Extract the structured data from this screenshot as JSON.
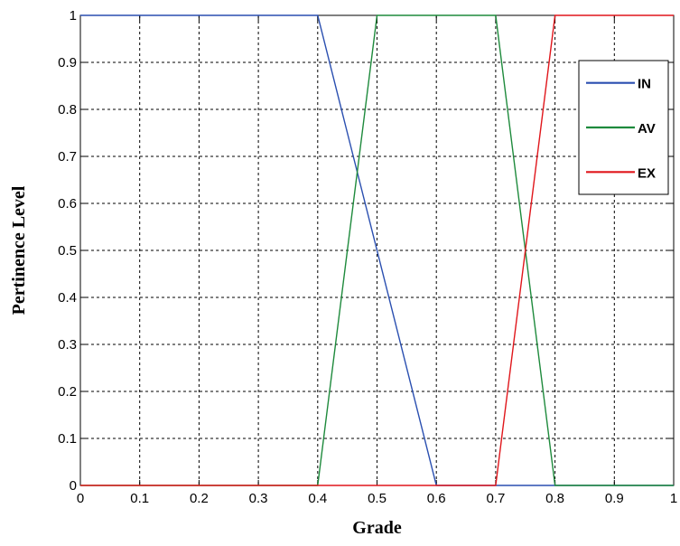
{
  "chart_data": {
    "type": "line",
    "xlabel": "Grade",
    "ylabel": "Pertinence Level",
    "xlim": [
      0,
      1
    ],
    "ylim": [
      0,
      1
    ],
    "x_ticks": [
      0,
      0.1,
      0.2,
      0.3,
      0.4,
      0.5,
      0.6,
      0.7,
      0.8,
      0.9,
      1
    ],
    "y_ticks": [
      0,
      0.1,
      0.2,
      0.3,
      0.4,
      0.5,
      0.6,
      0.7,
      0.8,
      0.9,
      1
    ],
    "x_tick_labels": [
      "0",
      "0.1",
      "0.2",
      "0.3",
      "0.4",
      "0.5",
      "0.6",
      "0.7",
      "0.8",
      "0.9",
      "1"
    ],
    "y_tick_labels": [
      "0",
      "0.1",
      "0.2",
      "0.3",
      "0.4",
      "0.5",
      "0.6",
      "0.7",
      "0.8",
      "0.9",
      "1"
    ],
    "grid": true,
    "grid_style": "dashed",
    "legend_position": "top-right",
    "series": [
      {
        "name": "IN",
        "color": "#2a4fb0",
        "x": [
          0,
          0.4,
          0.6,
          1
        ],
        "y": [
          1,
          1,
          0,
          0
        ]
      },
      {
        "name": "AV",
        "color": "#1e8a3c",
        "x": [
          0,
          0.4,
          0.5,
          0.7,
          0.8,
          1
        ],
        "y": [
          0,
          0,
          1,
          1,
          0,
          0
        ]
      },
      {
        "name": "EX",
        "color": "#e0161b",
        "x": [
          0,
          0.7,
          0.8,
          1
        ],
        "y": [
          0,
          0,
          1,
          1
        ]
      }
    ]
  }
}
